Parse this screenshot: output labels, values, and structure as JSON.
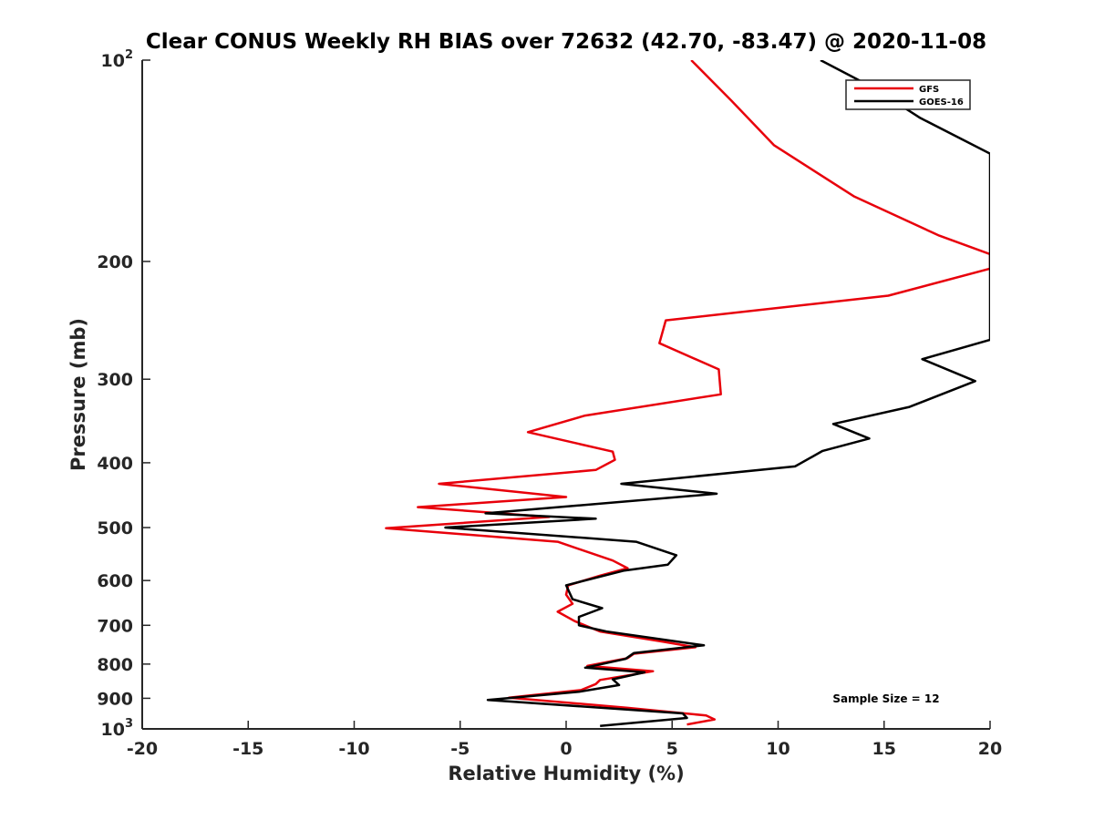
{
  "chart_data": {
    "type": "line",
    "title": "Clear CONUS Weekly RH BIAS over 72632 (42.70, -83.47) @ 2020-11-08",
    "xlabel": "Relative Humidity (%)",
    "ylabel": "Pressure (mb)",
    "xlim": [
      -20,
      20
    ],
    "ylim": [
      100,
      1000
    ],
    "y_scale": "log",
    "y_reversed": true,
    "grid": false,
    "legend_position": "top-right",
    "x_ticks": [
      "-20",
      "-15",
      "-10",
      "-5",
      "0",
      "5",
      "10",
      "15",
      "20"
    ],
    "y_ticks": [
      {
        "value": 100,
        "base": "10",
        "exp": "2"
      },
      {
        "value": 200,
        "label": "200"
      },
      {
        "value": 300,
        "label": "300"
      },
      {
        "value": 400,
        "label": "400"
      },
      {
        "value": 500,
        "label": "500"
      },
      {
        "value": 600,
        "label": "600"
      },
      {
        "value": 700,
        "label": "700"
      },
      {
        "value": 800,
        "label": "800"
      },
      {
        "value": 900,
        "label": "900"
      },
      {
        "value": 1000,
        "base": "10",
        "exp": "3"
      }
    ],
    "series": [
      {
        "name": "GFS",
        "color": "#e8000b",
        "points": [
          [
            5.9,
            100
          ],
          [
            7.8,
            115
          ],
          [
            9.8,
            134
          ],
          [
            13.6,
            160
          ],
          [
            17.6,
            183
          ],
          [
            20,
            195
          ],
          [
            20,
            205
          ],
          [
            15.2,
            225
          ],
          [
            4.7,
            245
          ],
          [
            4.4,
            265
          ],
          [
            7.2,
            290
          ],
          [
            7.3,
            316
          ],
          [
            0.9,
            340
          ],
          [
            -1.8,
            360
          ],
          [
            2.2,
            385
          ],
          [
            2.3,
            396
          ],
          [
            1.4,
            410
          ],
          [
            -6.0,
            430
          ],
          [
            0.0,
            450
          ],
          [
            -7.0,
            466
          ],
          [
            -0.8,
            482
          ],
          [
            -8.5,
            501
          ],
          [
            -0.4,
            525
          ],
          [
            2.2,
            560
          ],
          [
            2.9,
            575
          ],
          [
            1.6,
            590
          ],
          [
            0.1,
            610
          ],
          [
            0.0,
            630
          ],
          [
            0.3,
            650
          ],
          [
            -0.4,
            668
          ],
          [
            0.4,
            690
          ],
          [
            1.6,
            715
          ],
          [
            4.5,
            740
          ],
          [
            6.1,
            755
          ],
          [
            3.2,
            772
          ],
          [
            2.9,
            784
          ],
          [
            1.0,
            805
          ],
          [
            4.1,
            820
          ],
          [
            1.6,
            845
          ],
          [
            1.4,
            857
          ],
          [
            0.7,
            875
          ],
          [
            -2.7,
            898
          ],
          [
            2.9,
            930
          ],
          [
            5.6,
            948
          ],
          [
            6.6,
            955
          ],
          [
            7.0,
            968
          ],
          [
            5.7,
            985
          ]
        ]
      },
      {
        "name": "GOES-16",
        "color": "#000000",
        "points": [
          [
            12.0,
            100
          ],
          [
            14.5,
            110
          ],
          [
            16.7,
            122
          ],
          [
            20,
            138
          ],
          [
            20,
            262
          ],
          [
            16.8,
            280
          ],
          [
            19.3,
            302
          ],
          [
            16.2,
            330
          ],
          [
            12.6,
            350
          ],
          [
            14.3,
            368
          ],
          [
            12.1,
            384
          ],
          [
            10.8,
            405
          ],
          [
            2.6,
            430
          ],
          [
            7.1,
            445
          ],
          [
            -3.8,
            476
          ],
          [
            1.4,
            485
          ],
          [
            -5.7,
            500
          ],
          [
            3.3,
            525
          ],
          [
            5.2,
            550
          ],
          [
            4.8,
            568
          ],
          [
            2.7,
            580
          ],
          [
            0.0,
            610
          ],
          [
            0.3,
            640
          ],
          [
            1.7,
            660
          ],
          [
            0.6,
            680
          ],
          [
            0.6,
            700
          ],
          [
            1.9,
            715
          ],
          [
            6.5,
            750
          ],
          [
            3.2,
            770
          ],
          [
            2.8,
            786
          ],
          [
            0.9,
            810
          ],
          [
            3.7,
            823
          ],
          [
            2.2,
            843
          ],
          [
            2.5,
            860
          ],
          [
            0.6,
            880
          ],
          [
            -3.7,
            905
          ],
          [
            5.5,
            948
          ],
          [
            5.7,
            963
          ],
          [
            1.6,
            990
          ]
        ]
      }
    ],
    "annotation": "Sample Size = 12"
  }
}
